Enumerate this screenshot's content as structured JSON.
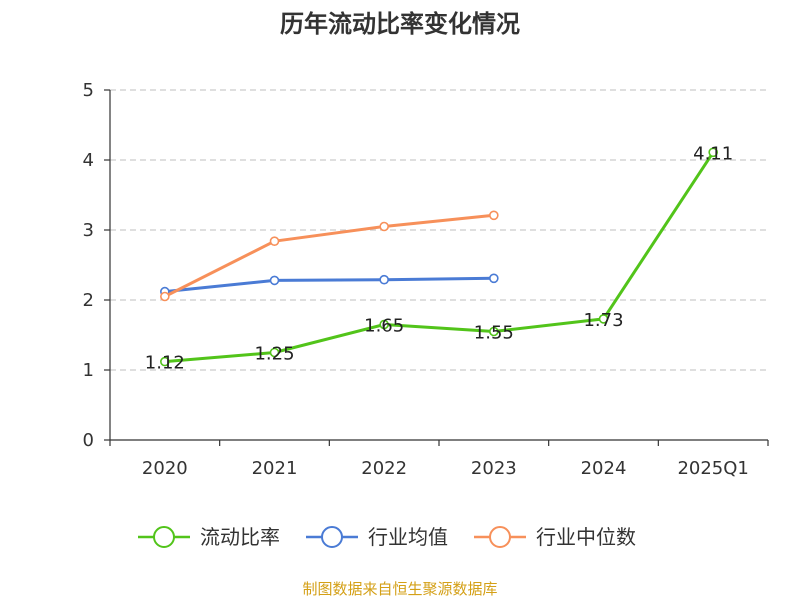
{
  "chart_data": {
    "type": "line",
    "title": "历年流动比率变化情况",
    "categories": [
      "2020",
      "2021",
      "2022",
      "2023",
      "2024",
      "2025Q1"
    ],
    "ylim": [
      0,
      5
    ],
    "yticks": [
      "0",
      "1",
      "2",
      "3",
      "4",
      "5"
    ],
    "grid": true,
    "legend_position": "bottom",
    "series": [
      {
        "name": "流动比率",
        "color": "#52c41a",
        "values": [
          1.12,
          1.25,
          1.65,
          1.55,
          1.73,
          4.11
        ],
        "labels": [
          "1.12",
          "1.25",
          "1.65",
          "1.55",
          "1.73",
          "4.11"
        ]
      },
      {
        "name": "行业均值",
        "color": "#4a7bd5",
        "values": [
          2.12,
          2.28,
          2.29,
          2.31,
          null,
          null
        ]
      },
      {
        "name": "行业中位数",
        "color": "#f7905a",
        "values": [
          2.05,
          2.84,
          3.05,
          3.21,
          null,
          null
        ]
      }
    ]
  },
  "footer": {
    "source": "制图数据来自恒生聚源数据库"
  }
}
